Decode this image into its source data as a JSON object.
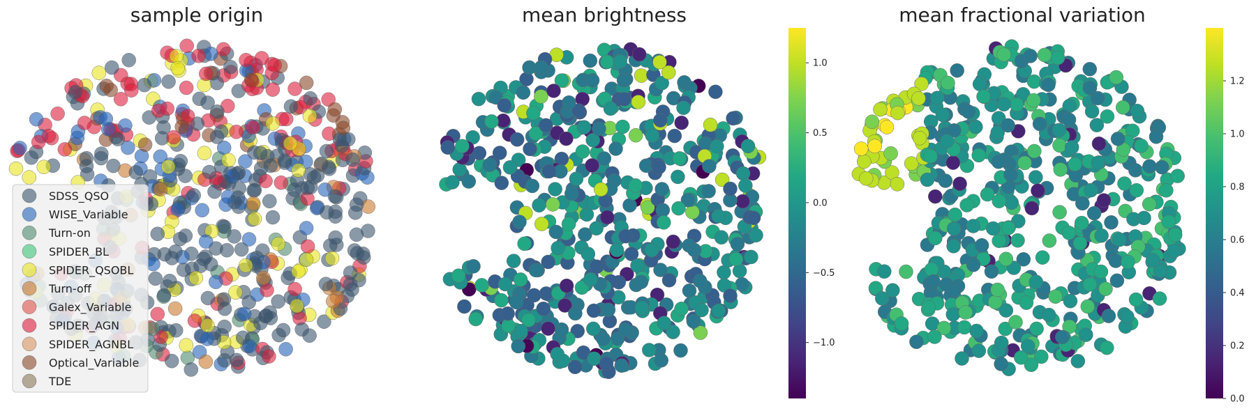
{
  "chart_data": [
    {
      "type": "scatter",
      "title": "sample origin",
      "xlabel": "",
      "ylabel": "",
      "grid": false,
      "legend_placement": "lower-left",
      "legend": [
        {
          "label": "SDSS_QSO",
          "color": "#3b556e"
        },
        {
          "label": "WISE_Variable",
          "color": "#2563b8"
        },
        {
          "label": "Turn-on",
          "color": "#4e8a6e"
        },
        {
          "label": "SPIDER_BL",
          "color": "#3cc47a"
        },
        {
          "label": "SPIDER_QSOBL",
          "color": "#e8e51e"
        },
        {
          "label": "Turn-off",
          "color": "#c97a2e"
        },
        {
          "label": "Galex_Variable",
          "color": "#e0504a"
        },
        {
          "label": "SPIDER_AGN",
          "color": "#dc1e3c"
        },
        {
          "label": "SPIDER_AGNBL",
          "color": "#d89560"
        },
        {
          "label": "Optical_Variable",
          "color": "#8a4a2a"
        },
        {
          "label": "TDE",
          "color": "#8a7658"
        }
      ]
    },
    {
      "type": "scatter",
      "title": "mean brightness",
      "xlabel": "",
      "ylabel": "",
      "grid": false,
      "colorbar": {
        "colormap": "viridis",
        "range": [
          -1.4,
          1.25
        ],
        "ticks": [
          "1.0",
          "0.5",
          "0.0",
          "−0.5",
          "−1.0"
        ],
        "tick_values": [
          1.0,
          0.5,
          0.0,
          -0.5,
          -1.0
        ]
      }
    },
    {
      "type": "scatter",
      "title": "mean fractional variation",
      "xlabel": "",
      "ylabel": "",
      "grid": false,
      "colorbar": {
        "colormap": "viridis",
        "range": [
          0.0,
          1.4
        ],
        "ticks": [
          "1.2",
          "1.0",
          "0.8",
          "0.6",
          "0.4",
          "0.2",
          "0.0"
        ],
        "tick_values": [
          1.2,
          1.0,
          0.8,
          0.6,
          0.4,
          0.2,
          0.0
        ]
      }
    }
  ]
}
